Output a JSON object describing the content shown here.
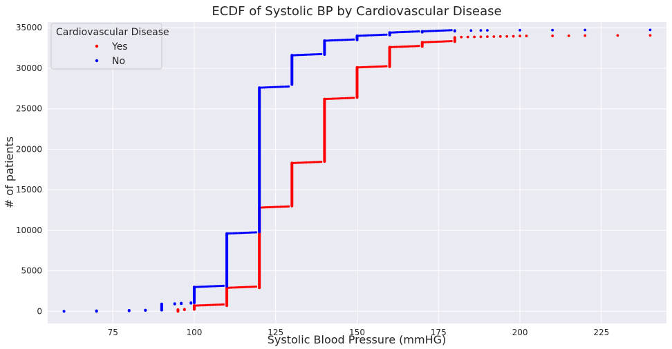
{
  "chart_data": {
    "type": "scatter",
    "title": "ECDF of Systolic BP by Cardiovascular Disease",
    "xlabel": "Systolic Blood Pressure (mmHG)",
    "ylabel": "# of patients",
    "xlim": [
      55,
      245
    ],
    "ylim": [
      -1500,
      35700
    ],
    "xticks": [
      75,
      100,
      125,
      150,
      175,
      200,
      225
    ],
    "yticks": [
      0,
      5000,
      10000,
      15000,
      20000,
      25000,
      30000,
      35000
    ],
    "grid": true,
    "legend": {
      "title": "Cardiovascular Disease",
      "position": "top-left",
      "entries": [
        "Yes",
        "No"
      ]
    },
    "series": [
      {
        "name": "Yes",
        "color": "#ff0000",
        "steps": [
          {
            "x": 95,
            "y0": 0,
            "y1": 200
          },
          {
            "x": 97,
            "y0": 200,
            "y1": 250
          },
          {
            "x": 100,
            "y0": 250,
            "y1": 700,
            "flat_to": 109
          },
          {
            "x": 110,
            "y0": 700,
            "y1": 2900,
            "flat_to": 119
          },
          {
            "x": 120,
            "y0": 2900,
            "y1": 12800,
            "flat_to": 129
          },
          {
            "x": 130,
            "y0": 13000,
            "y1": 18300,
            "flat_to": 139
          },
          {
            "x": 140,
            "y0": 18500,
            "y1": 26200,
            "flat_to": 149
          },
          {
            "x": 150,
            "y0": 26400,
            "y1": 30100,
            "flat_to": 159
          },
          {
            "x": 160,
            "y0": 30200,
            "y1": 32600,
            "flat_to": 169
          },
          {
            "x": 170,
            "y0": 32700,
            "y1": 33200,
            "flat_to": 179
          },
          {
            "x": 180,
            "y0": 33300,
            "y1": 33800
          }
        ],
        "tail": [
          {
            "x": 182,
            "y": 33850
          },
          {
            "x": 184,
            "y": 33860
          },
          {
            "x": 186,
            "y": 33870
          },
          {
            "x": 188,
            "y": 33880
          },
          {
            "x": 190,
            "y": 33900
          },
          {
            "x": 192,
            "y": 33910
          },
          {
            "x": 194,
            "y": 33920
          },
          {
            "x": 196,
            "y": 33930
          },
          {
            "x": 198,
            "y": 33940
          },
          {
            "x": 200,
            "y": 33980
          },
          {
            "x": 202,
            "y": 33990
          },
          {
            "x": 210,
            "y": 34000
          },
          {
            "x": 215,
            "y": 34010
          },
          {
            "x": 220,
            "y": 34030
          },
          {
            "x": 230,
            "y": 34050
          },
          {
            "x": 240,
            "y": 34060
          }
        ]
      },
      {
        "name": "No",
        "color": "#0000ff",
        "steps": [
          {
            "x": 60,
            "y0": 0,
            "y1": 0
          },
          {
            "x": 70,
            "y0": 0,
            "y1": 60
          },
          {
            "x": 80,
            "y0": 60,
            "y1": 120
          },
          {
            "x": 85,
            "y0": 120,
            "y1": 150
          },
          {
            "x": 90,
            "y0": 150,
            "y1": 900
          },
          {
            "x": 94,
            "y0": 900,
            "y1": 950
          },
          {
            "x": 96,
            "y0": 950,
            "y1": 1000
          },
          {
            "x": 99,
            "y0": 1000,
            "y1": 1050
          },
          {
            "x": 100,
            "y0": 1050,
            "y1": 3000,
            "flat_to": 109
          },
          {
            "x": 110,
            "y0": 3100,
            "y1": 9600,
            "flat_to": 119
          },
          {
            "x": 120,
            "y0": 9800,
            "y1": 27600,
            "flat_to": 129
          },
          {
            "x": 130,
            "y0": 28000,
            "y1": 31600,
            "flat_to": 139
          },
          {
            "x": 140,
            "y0": 31700,
            "y1": 33400,
            "flat_to": 149
          },
          {
            "x": 150,
            "y0": 33500,
            "y1": 34000,
            "flat_to": 159
          },
          {
            "x": 160,
            "y0": 34100,
            "y1": 34400,
            "flat_to": 169
          },
          {
            "x": 170,
            "y0": 34450,
            "y1": 34550,
            "flat_to": 179
          },
          {
            "x": 180,
            "y0": 34580,
            "y1": 34650
          }
        ],
        "tail": [
          {
            "x": 185,
            "y": 34660
          },
          {
            "x": 188,
            "y": 34670
          },
          {
            "x": 190,
            "y": 34680
          },
          {
            "x": 200,
            "y": 34700
          },
          {
            "x": 210,
            "y": 34710
          },
          {
            "x": 220,
            "y": 34720
          },
          {
            "x": 240,
            "y": 34730
          }
        ]
      }
    ]
  }
}
